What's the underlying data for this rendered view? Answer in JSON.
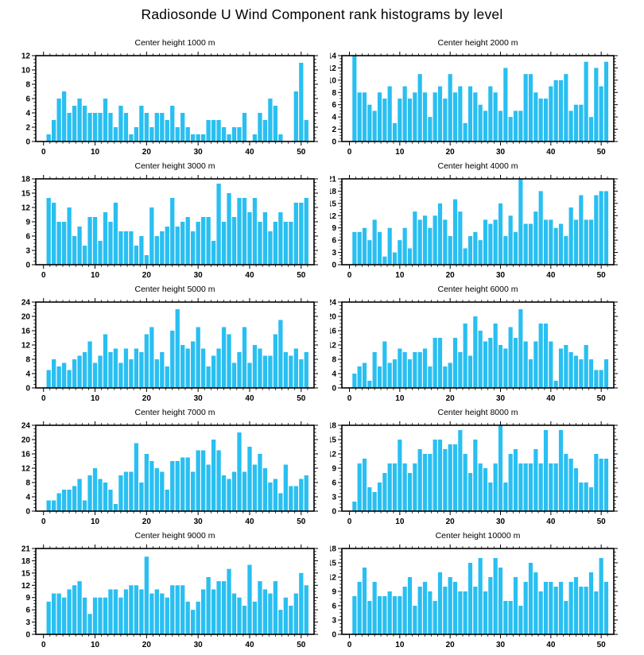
{
  "title": "Radiosonde U Wind Component rank histograms by level",
  "style": {
    "bar_color": "#29BFF1",
    "axis_color": "#000000",
    "background": "#ffffff",
    "text_color": "#000000"
  },
  "layout": {
    "rows": 5,
    "cols": 2,
    "xticks": [
      0,
      10,
      20,
      30,
      40,
      50
    ],
    "x_minor_step": 1.25,
    "xlim": [
      -1.5,
      52.5
    ],
    "grid": false,
    "legend": false,
    "bin_start": 1,
    "bin_count": 51
  },
  "chart_data": [
    {
      "type": "bar",
      "title": "Center height 1000 m",
      "ylim": [
        0,
        12
      ],
      "ytick_step": 2,
      "values": [
        1,
        3,
        6,
        7,
        4,
        5,
        6,
        5,
        4,
        4,
        4,
        6,
        4,
        2,
        5,
        4,
        1,
        2,
        5,
        4,
        2,
        4,
        4,
        3,
        5,
        2,
        4,
        2,
        1,
        1,
        1,
        3,
        3,
        3,
        2,
        1,
        2,
        2,
        4,
        0,
        1,
        4,
        3,
        6,
        5,
        1,
        0,
        0,
        7,
        11,
        3
      ]
    },
    {
      "type": "bar",
      "title": "Center height 2000 m",
      "ylim": [
        0,
        14
      ],
      "ytick_step": 2,
      "values": [
        14,
        8,
        8,
        6,
        5,
        8,
        7,
        9,
        3,
        7,
        9,
        7,
        8,
        11,
        8,
        4,
        8,
        9,
        7,
        11,
        8,
        9,
        3,
        9,
        8,
        6,
        5,
        9,
        8,
        5,
        12,
        4,
        5,
        5,
        11,
        11,
        8,
        7,
        7,
        9,
        10,
        10,
        11,
        5,
        6,
        6,
        13,
        4,
        12,
        9,
        13
      ]
    },
    {
      "type": "bar",
      "title": "Center height 3000 m",
      "ylim": [
        0,
        18
      ],
      "ytick_step": 3,
      "values": [
        14,
        13,
        9,
        9,
        12,
        6,
        8,
        4,
        10,
        10,
        5,
        11,
        9,
        13,
        7,
        7,
        7,
        4,
        6,
        2,
        12,
        6,
        7,
        8,
        14,
        8,
        9,
        10,
        7,
        9,
        10,
        10,
        5,
        17,
        9,
        15,
        10,
        14,
        14,
        11,
        14,
        9,
        11,
        7,
        9,
        11,
        9,
        9,
        13,
        13,
        14
      ]
    },
    {
      "type": "bar",
      "title": "Center height 4000 m",
      "ylim": [
        0,
        21
      ],
      "ytick_step": 3,
      "values": [
        8,
        8,
        9,
        6,
        11,
        8,
        2,
        9,
        3,
        6,
        9,
        4,
        13,
        11,
        12,
        9,
        12,
        15,
        11,
        7,
        16,
        13,
        4,
        7,
        8,
        6,
        11,
        10,
        11,
        15,
        7,
        12,
        8,
        21,
        10,
        10,
        13,
        18,
        11,
        11,
        9,
        10,
        7,
        14,
        11,
        17,
        11,
        11,
        17,
        18,
        18
      ]
    },
    {
      "type": "bar",
      "title": "Center height 5000 m",
      "ylim": [
        0,
        24
      ],
      "ytick_step": 4,
      "values": [
        5,
        8,
        6,
        7,
        5,
        8,
        9,
        10,
        13,
        7,
        9,
        15,
        10,
        11,
        7,
        11,
        8,
        11,
        10,
        15,
        17,
        8,
        10,
        6,
        16,
        22,
        12,
        11,
        13,
        17,
        11,
        6,
        9,
        11,
        17,
        15,
        7,
        10,
        17,
        7,
        12,
        11,
        9,
        9,
        15,
        19,
        10,
        9,
        11,
        8,
        10
      ]
    },
    {
      "type": "bar",
      "title": "Center height 6000 m",
      "ylim": [
        0,
        24
      ],
      "ytick_step": 4,
      "values": [
        4,
        6,
        7,
        2,
        10,
        6,
        13,
        7,
        8,
        11,
        10,
        8,
        10,
        10,
        11,
        6,
        14,
        14,
        6,
        7,
        14,
        10,
        18,
        9,
        20,
        16,
        13,
        14,
        18,
        12,
        11,
        17,
        14,
        22,
        13,
        8,
        13,
        18,
        18,
        13,
        2,
        11,
        12,
        10,
        9,
        8,
        12,
        8,
        5,
        5,
        8
      ]
    },
    {
      "type": "bar",
      "title": "Center height 7000 m",
      "ylim": [
        0,
        24
      ],
      "ytick_step": 4,
      "values": [
        3,
        3,
        5,
        6,
        6,
        7,
        9,
        3,
        10,
        12,
        9,
        8,
        6,
        2,
        10,
        11,
        11,
        19,
        8,
        16,
        14,
        12,
        11,
        6,
        14,
        14,
        15,
        15,
        11,
        17,
        17,
        13,
        20,
        17,
        10,
        9,
        11,
        22,
        11,
        18,
        13,
        16,
        12,
        8,
        9,
        5,
        13,
        7,
        7,
        9,
        10
      ]
    },
    {
      "type": "bar",
      "title": "Center height 8000 m",
      "ylim": [
        0,
        18
      ],
      "ytick_step": 3,
      "values": [
        2,
        10,
        11,
        5,
        4,
        6,
        8,
        10,
        10,
        15,
        10,
        8,
        10,
        13,
        12,
        12,
        15,
        15,
        13,
        14,
        14,
        17,
        12,
        8,
        15,
        10,
        9,
        6,
        10,
        18,
        6,
        12,
        13,
        10,
        10,
        10,
        13,
        10,
        17,
        10,
        10,
        17,
        12,
        11,
        9,
        6,
        6,
        5,
        12,
        11,
        11
      ]
    },
    {
      "type": "bar",
      "title": "Center height 9000 m",
      "ylim": [
        0,
        21
      ],
      "ytick_step": 3,
      "values": [
        8,
        10,
        10,
        9,
        11,
        12,
        13,
        9,
        5,
        9,
        9,
        9,
        11,
        11,
        9,
        11,
        12,
        12,
        11,
        19,
        10,
        11,
        10,
        9,
        12,
        12,
        12,
        8,
        6,
        8,
        11,
        14,
        11,
        13,
        13,
        16,
        10,
        9,
        7,
        17,
        8,
        13,
        11,
        10,
        13,
        6,
        9,
        7,
        10,
        15,
        12
      ]
    },
    {
      "type": "bar",
      "title": "Center height 10000 m",
      "ylim": [
        0,
        18
      ],
      "ytick_step": 3,
      "values": [
        8,
        11,
        14,
        7,
        11,
        8,
        8,
        9,
        8,
        8,
        10,
        12,
        6,
        10,
        11,
        9,
        7,
        13,
        10,
        12,
        11,
        9,
        9,
        15,
        10,
        16,
        9,
        12,
        16,
        14,
        7,
        7,
        12,
        6,
        11,
        15,
        13,
        9,
        11,
        11,
        10,
        11,
        7,
        11,
        12,
        10,
        10,
        13,
        9,
        16,
        11
      ]
    }
  ]
}
